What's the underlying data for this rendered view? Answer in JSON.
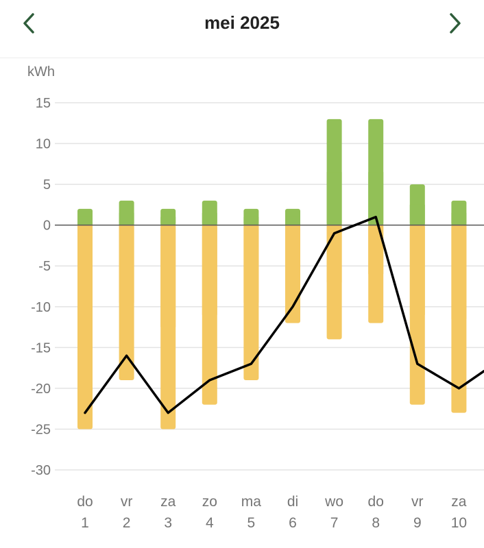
{
  "header": {
    "title": "mei 2025",
    "prev_icon": "chevron-left-icon",
    "next_icon": "chevron-right-icon",
    "icon_color": "#2e5d3a"
  },
  "chart_data": {
    "type": "bar",
    "title": "",
    "xlabel": "",
    "ylabel": "kWh",
    "ylim": [
      -30,
      15
    ],
    "yticks": [
      15,
      10,
      5,
      0,
      -5,
      -10,
      -15,
      -20,
      -25,
      -30
    ],
    "grid": true,
    "categories": [
      {
        "weekday": "do",
        "day": "1"
      },
      {
        "weekday": "vr",
        "day": "2"
      },
      {
        "weekday": "za",
        "day": "3"
      },
      {
        "weekday": "zo",
        "day": "4"
      },
      {
        "weekday": "ma",
        "day": "5"
      },
      {
        "weekday": "di",
        "day": "6"
      },
      {
        "weekday": "wo",
        "day": "7"
      },
      {
        "weekday": "do",
        "day": "8"
      },
      {
        "weekday": "vr",
        "day": "9"
      },
      {
        "weekday": "za",
        "day": "10"
      }
    ],
    "series": [
      {
        "type": "bar",
        "color": "#92c057",
        "values": [
          2,
          3,
          2,
          3,
          2,
          2,
          13,
          13,
          5,
          3
        ]
      },
      {
        "type": "bar",
        "color": "#f4c862",
        "values": [
          -25,
          -19,
          -25,
          -22,
          -19,
          -12,
          -14,
          -12,
          -22,
          -23
        ]
      },
      {
        "type": "line",
        "color": "#000000",
        "values": [
          -23,
          -16,
          -23,
          -19,
          -17,
          -10,
          -1,
          1,
          -17,
          -20
        ],
        "continues_to": -16.5
      }
    ]
  }
}
